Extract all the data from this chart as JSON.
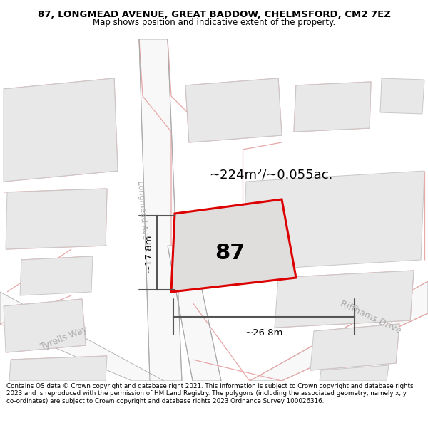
{
  "title_line1": "87, LONGMEAD AVENUE, GREAT BADDOW, CHELMSFORD, CM2 7EZ",
  "title_line2": "Map shows position and indicative extent of the property.",
  "area_label": "~224m²/~0.055ac.",
  "plot_number": "87",
  "width_label": "~26.8m",
  "height_label": "~17.8m",
  "road_label_longmead": "Longmead Ave",
  "road_label_tyrells": "Tyrells Way",
  "road_label_riffhams": "Riffhams Drive",
  "footer_text": "Contains OS data © Crown copyright and database right 2021. This information is subject to Crown copyright and database rights 2023 and is reproduced with the permission of HM Land Registry. The polygons (including the associated geometry, namely x, y co-ordinates) are subject to Crown copyright and database rights 2023 Ordnance Survey 100026316.",
  "map_bg": "#ffffff",
  "building_fill": "#e8e8e8",
  "building_edge": "#c8c8c8",
  "road_fill": "#f0f0f0",
  "plot_fill": "#e0dddd",
  "plot_border": "#dd0000",
  "pink_line": "#e8a8a8",
  "gray_line": "#aaaaaa",
  "dim_line_color": "#555555",
  "footer_bg": "#ffffff",
  "title_bg": "#ffffff",
  "road_text_color": "#aaaaaa",
  "label_fontsize": 13,
  "number_fontsize": 22
}
